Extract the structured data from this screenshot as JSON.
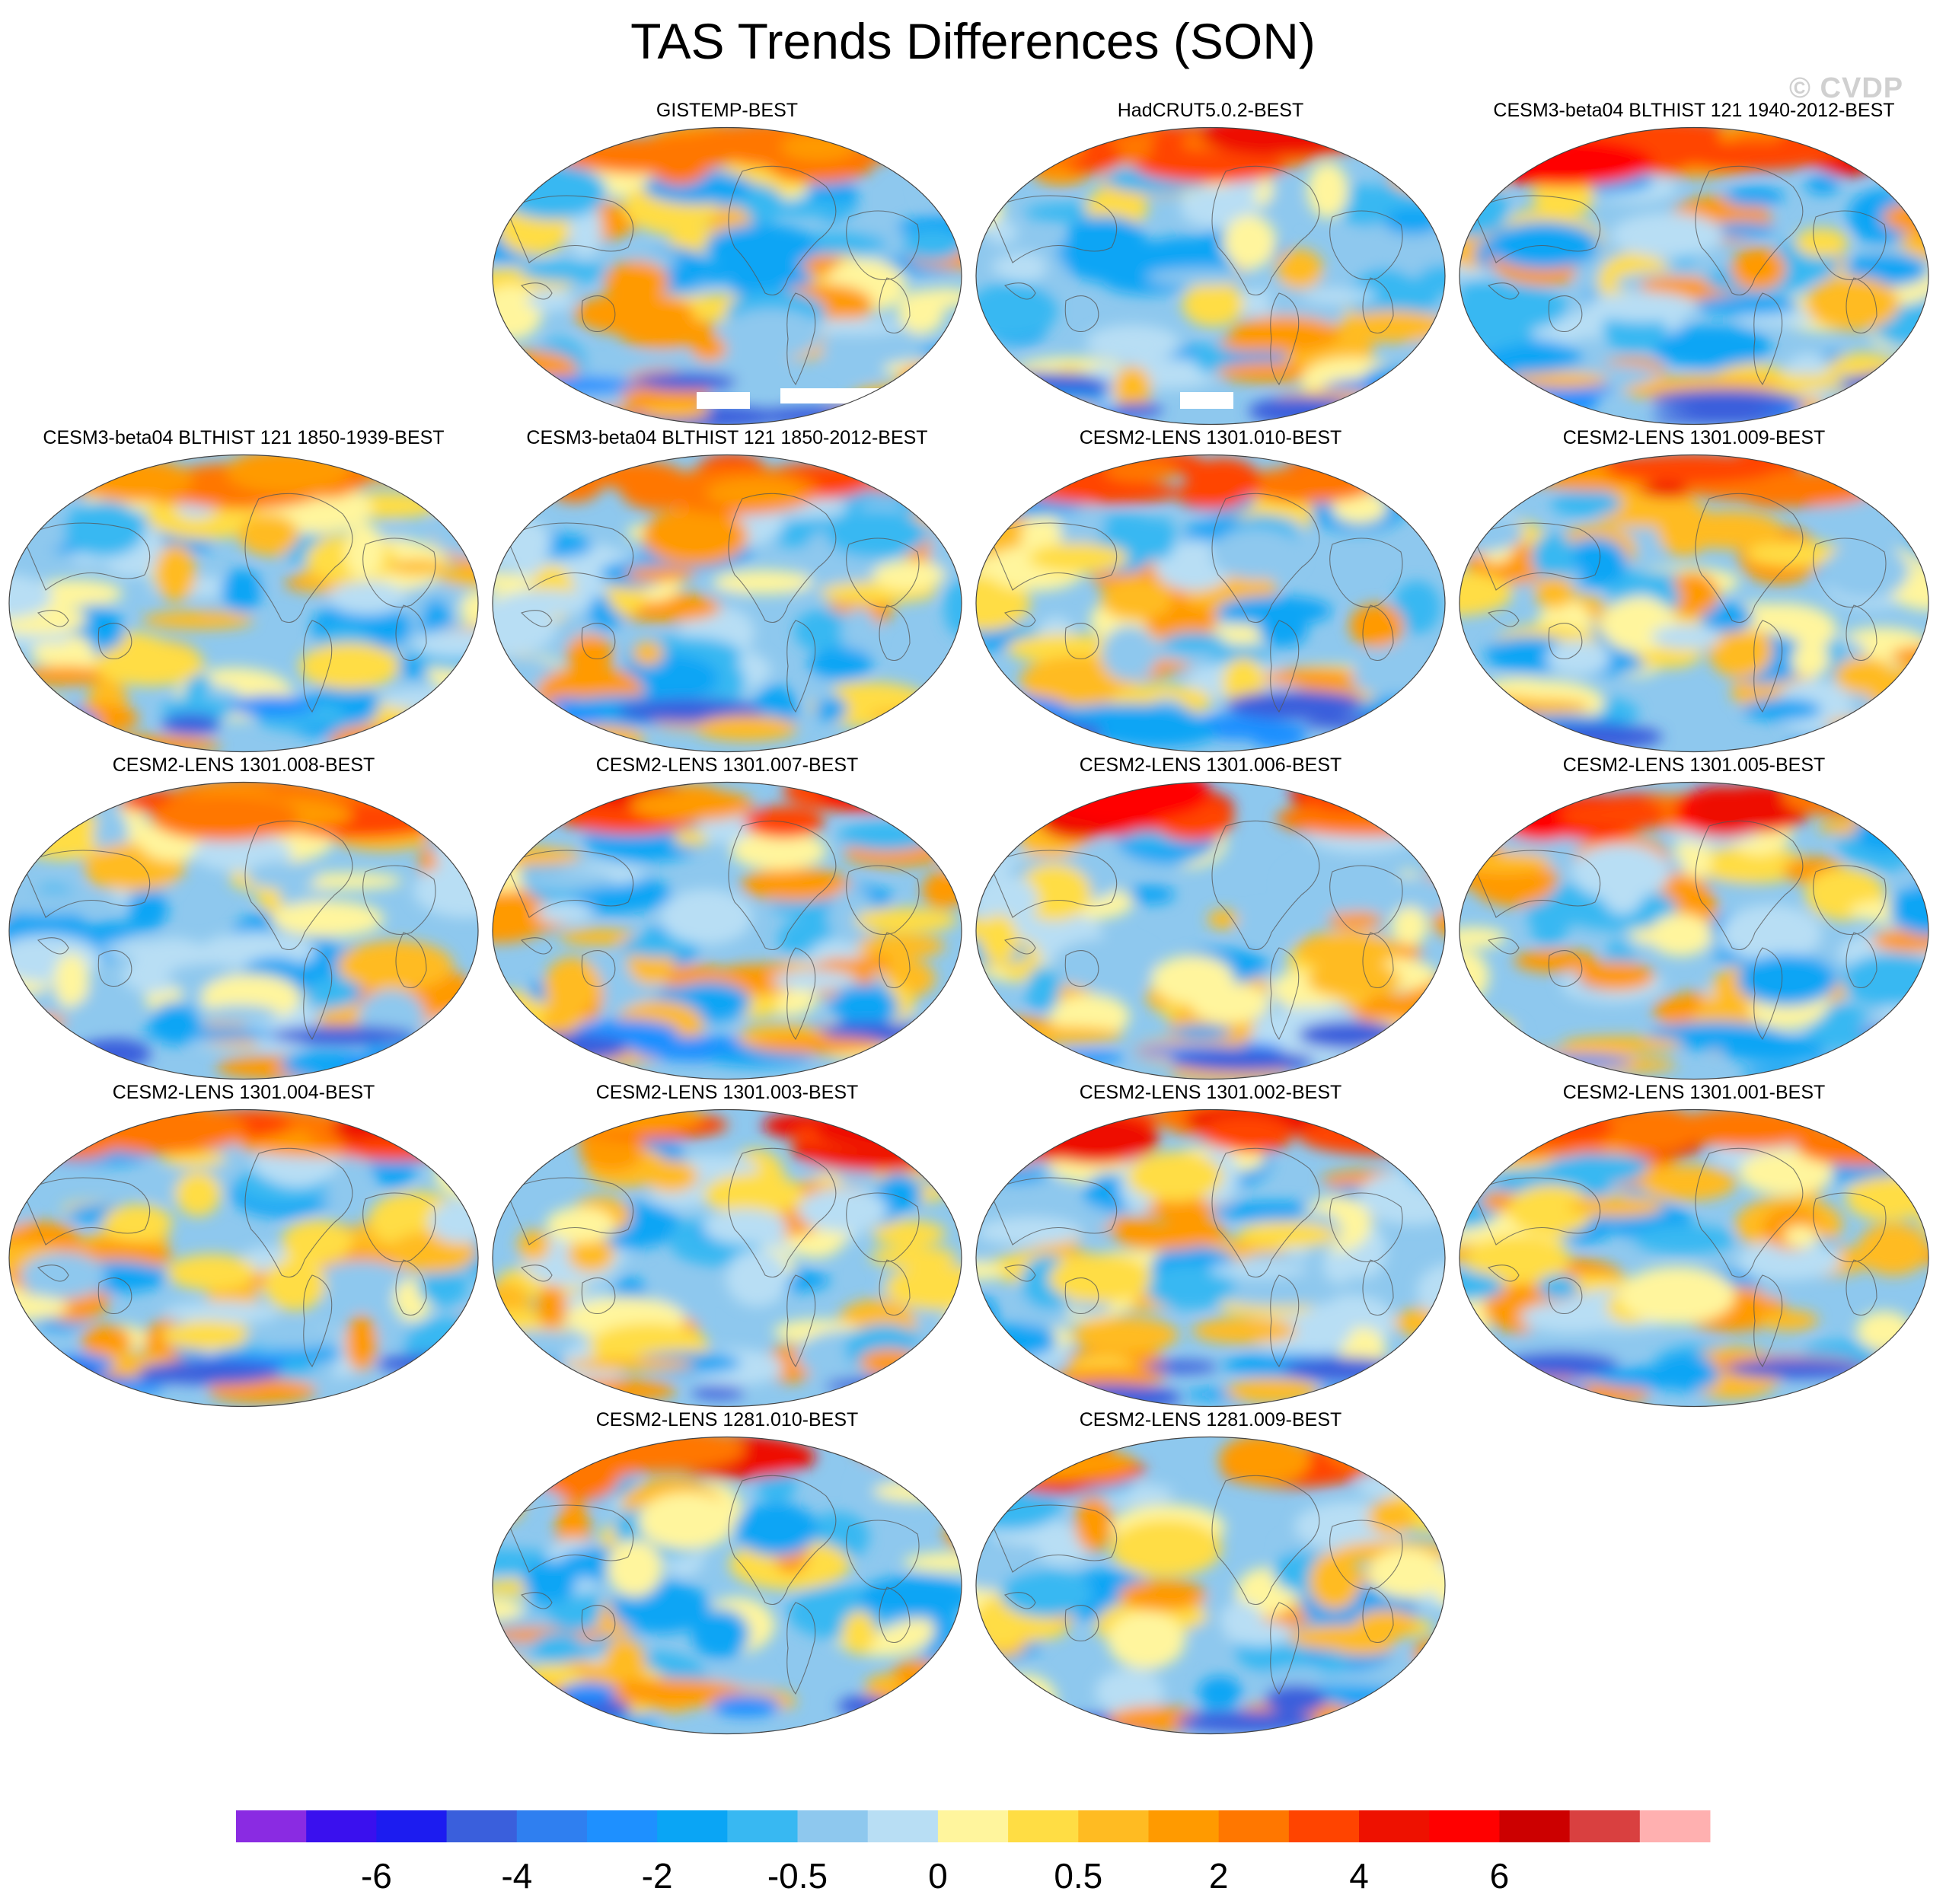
{
  "title": "TAS Trends Differences (SON)",
  "watermark": "© CVDP",
  "panels": [
    {
      "label": "GISTEMP-BEST",
      "pattern": 1,
      "warm_north": 0.3,
      "missing_south": true
    },
    {
      "label": "HadCRUT5.0.2-BEST",
      "pattern": 2,
      "warm_north": 0.6,
      "missing_south": true
    },
    {
      "label": "CESM3-beta04 BLTHIST 121 1940-2012-BEST",
      "pattern": 3,
      "warm_north": 0.8,
      "missing_south": false
    },
    {
      "label": "CESM3-beta04 BLTHIST 121 1850-1939-BEST",
      "pattern": 4,
      "warm_north": 0.2,
      "missing_south": false
    },
    {
      "label": "CESM3-beta04 BLTHIST 121 1850-2012-BEST",
      "pattern": 5,
      "warm_north": 0.6,
      "missing_south": false
    },
    {
      "label": "CESM2-LENS 1301.010-BEST",
      "pattern": 6,
      "warm_north": 0.5,
      "missing_south": false
    },
    {
      "label": "CESM2-LENS 1301.009-BEST",
      "pattern": 7,
      "warm_north": 0.7,
      "missing_south": false
    },
    {
      "label": "CESM2-LENS 1301.008-BEST",
      "pattern": 8,
      "warm_north": 0.5,
      "missing_south": false
    },
    {
      "label": "CESM2-LENS 1301.007-BEST",
      "pattern": 9,
      "warm_north": 0.8,
      "missing_south": false
    },
    {
      "label": "CESM2-LENS 1301.006-BEST",
      "pattern": 10,
      "warm_north": 0.85,
      "missing_south": false
    },
    {
      "label": "CESM2-LENS 1301.005-BEST",
      "pattern": 11,
      "warm_north": 0.8,
      "missing_south": false
    },
    {
      "label": "CESM2-LENS 1301.004-BEST",
      "pattern": 12,
      "warm_north": 0.7,
      "missing_south": false
    },
    {
      "label": "CESM2-LENS 1301.003-BEST",
      "pattern": 13,
      "warm_north": 0.8,
      "missing_south": false
    },
    {
      "label": "CESM2-LENS 1301.002-BEST",
      "pattern": 14,
      "warm_north": 0.85,
      "missing_south": false
    },
    {
      "label": "CESM2-LENS 1301.001-BEST",
      "pattern": 15,
      "warm_north": 0.7,
      "missing_south": false
    },
    {
      "label": "CESM2-LENS 1281.010-BEST",
      "pattern": 16,
      "warm_north": 0.7,
      "missing_south": false
    },
    {
      "label": "CESM2-LENS 1281.009-BEST",
      "pattern": 17,
      "warm_north": 0.8,
      "missing_south": false
    }
  ],
  "colorbar": {
    "colors": [
      "#8a2be2",
      "#3a10ee",
      "#1c1cf0",
      "#3a5fdc",
      "#2f7ff0",
      "#1e90ff",
      "#0aa5f5",
      "#38b8f2",
      "#8ec8ee",
      "#b8def4",
      "#fff59d",
      "#ffdd44",
      "#ffbb22",
      "#ff9a00",
      "#ff7700",
      "#ff4400",
      "#ee1100",
      "#ff0000",
      "#cc0000",
      "#d94040",
      "#ffb0b0"
    ],
    "tick_labels": [
      "-6",
      "-4",
      "-2",
      "-0.5",
      "0",
      "0.5",
      "2",
      "4",
      "6"
    ],
    "tick_boundaries": [
      2,
      4,
      6,
      8,
      10,
      12,
      14,
      16,
      18
    ]
  }
}
